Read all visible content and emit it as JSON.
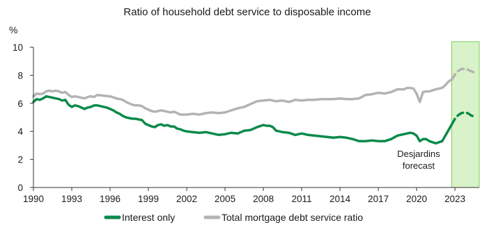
{
  "chart_data": {
    "type": "line",
    "title": "Ratio of household debt service to disposable income",
    "y_unit_label": "%",
    "xlabel": "",
    "ylabel": "",
    "xlim": [
      1990,
      2024.9
    ],
    "ylim": [
      0,
      10
    ],
    "x_ticks": [
      1990,
      1993,
      1996,
      1999,
      2002,
      2005,
      2008,
      2011,
      2014,
      2017,
      2020,
      2023
    ],
    "y_ticks": [
      0,
      2,
      4,
      6,
      8,
      10
    ],
    "grid": false,
    "legend_position": "bottom",
    "forecast_region": {
      "start": 2022.75,
      "end": 2024.9,
      "color": "#d9f2c9",
      "border": "#7ccf5b"
    },
    "annotation": {
      "lines": [
        "Desjardins",
        "forecast"
      ]
    },
    "series": [
      {
        "name": "Interest only",
        "color": "#0a8a4a",
        "style": "solid",
        "x": [
          1990.0,
          1990.25,
          1990.5,
          1990.75,
          1991.0,
          1991.25,
          1991.5,
          1991.75,
          1992.0,
          1992.25,
          1992.5,
          1992.75,
          1993.0,
          1993.25,
          1993.5,
          1993.75,
          1994.0,
          1994.25,
          1994.5,
          1994.75,
          1995.0,
          1995.25,
          1995.5,
          1995.75,
          1996.0,
          1996.25,
          1996.5,
          1996.75,
          1997.0,
          1997.25,
          1997.5,
          1997.75,
          1998.0,
          1998.25,
          1998.5,
          1998.75,
          1999.0,
          1999.25,
          1999.5,
          1999.75,
          2000.0,
          2000.25,
          2000.5,
          2000.75,
          2001.0,
          2001.25,
          2001.5,
          2001.75,
          2002.0,
          2002.5,
          2003.0,
          2003.5,
          2004.0,
          2004.5,
          2005.0,
          2005.5,
          2006.0,
          2006.5,
          2007.0,
          2007.5,
          2008.0,
          2008.25,
          2008.5,
          2008.75,
          2009.0,
          2009.5,
          2010.0,
          2010.5,
          2011.0,
          2011.5,
          2012.0,
          2012.5,
          2013.0,
          2013.5,
          2014.0,
          2014.5,
          2015.0,
          2015.5,
          2016.0,
          2016.5,
          2017.0,
          2017.5,
          2018.0,
          2018.5,
          2019.0,
          2019.5,
          2019.75,
          2020.0,
          2020.25,
          2020.5,
          2020.75,
          2021.0,
          2021.5,
          2022.0,
          2022.25,
          2022.5,
          2022.75
        ],
        "values": [
          6.1,
          6.3,
          6.25,
          6.35,
          6.5,
          6.45,
          6.4,
          6.35,
          6.3,
          6.2,
          6.25,
          5.9,
          5.75,
          5.85,
          5.8,
          5.7,
          5.6,
          5.7,
          5.75,
          5.85,
          5.85,
          5.8,
          5.75,
          5.7,
          5.6,
          5.5,
          5.35,
          5.25,
          5.1,
          5.0,
          4.95,
          4.9,
          4.9,
          4.85,
          4.8,
          4.55,
          4.45,
          4.35,
          4.3,
          4.45,
          4.5,
          4.4,
          4.45,
          4.35,
          4.35,
          4.2,
          4.15,
          4.05,
          4.0,
          3.95,
          3.9,
          3.95,
          3.85,
          3.75,
          3.8,
          3.9,
          3.85,
          4.05,
          4.1,
          4.3,
          4.45,
          4.4,
          4.4,
          4.3,
          4.05,
          3.95,
          3.9,
          3.75,
          3.85,
          3.75,
          3.7,
          3.65,
          3.6,
          3.55,
          3.6,
          3.55,
          3.45,
          3.3,
          3.3,
          3.35,
          3.3,
          3.3,
          3.45,
          3.7,
          3.8,
          3.9,
          3.85,
          3.7,
          3.3,
          3.45,
          3.45,
          3.3,
          3.15,
          3.3,
          3.7,
          4.1,
          4.5
        ]
      },
      {
        "name": "Interest only (forecast)",
        "color": "#0a8a4a",
        "style": "dashed",
        "x": [
          2022.75,
          2023.0,
          2023.25,
          2023.5,
          2023.75,
          2024.0,
          2024.25,
          2024.5
        ],
        "values": [
          4.5,
          4.9,
          5.15,
          5.3,
          5.35,
          5.3,
          5.15,
          5.05
        ]
      },
      {
        "name": "Total mortgage debt service ratio",
        "color": "#b3b3b3",
        "style": "solid",
        "x": [
          1990.0,
          1990.25,
          1990.5,
          1990.75,
          1991.0,
          1991.25,
          1991.5,
          1991.75,
          1992.0,
          1992.25,
          1992.5,
          1992.75,
          1993.0,
          1993.25,
          1993.5,
          1993.75,
          1994.0,
          1994.25,
          1994.5,
          1994.75,
          1995.0,
          1995.5,
          1996.0,
          1996.5,
          1997.0,
          1997.25,
          1997.5,
          1997.75,
          1998.0,
          1998.25,
          1998.5,
          1998.75,
          1999.0,
          1999.25,
          1999.5,
          1999.75,
          2000.0,
          2000.25,
          2000.5,
          2000.75,
          2001.0,
          2001.25,
          2001.5,
          2001.75,
          2002.0,
          2002.5,
          2003.0,
          2003.5,
          2004.0,
          2004.5,
          2005.0,
          2005.5,
          2006.0,
          2006.5,
          2007.0,
          2007.5,
          2008.0,
          2008.5,
          2009.0,
          2009.5,
          2010.0,
          2010.5,
          2011.0,
          2011.5,
          2012.0,
          2012.5,
          2013.0,
          2013.5,
          2014.0,
          2014.5,
          2015.0,
          2015.5,
          2016.0,
          2016.5,
          2017.0,
          2017.5,
          2018.0,
          2018.5,
          2019.0,
          2019.25,
          2019.5,
          2019.75,
          2020.0,
          2020.25,
          2020.5,
          2020.75,
          2021.0,
          2021.5,
          2022.0,
          2022.25,
          2022.5,
          2022.75
        ],
        "values": [
          6.5,
          6.7,
          6.65,
          6.7,
          6.85,
          6.9,
          6.85,
          6.9,
          6.85,
          6.75,
          6.8,
          6.6,
          6.45,
          6.5,
          6.45,
          6.4,
          6.35,
          6.45,
          6.5,
          6.45,
          6.6,
          6.55,
          6.5,
          6.35,
          6.25,
          6.1,
          6.0,
          5.9,
          5.85,
          5.85,
          5.8,
          5.65,
          5.55,
          5.45,
          5.4,
          5.45,
          5.5,
          5.45,
          5.4,
          5.35,
          5.4,
          5.3,
          5.2,
          5.2,
          5.2,
          5.25,
          5.2,
          5.3,
          5.35,
          5.3,
          5.35,
          5.5,
          5.65,
          5.75,
          5.95,
          6.15,
          6.2,
          6.25,
          6.15,
          6.2,
          6.1,
          6.25,
          6.2,
          6.25,
          6.25,
          6.3,
          6.3,
          6.3,
          6.35,
          6.3,
          6.3,
          6.35,
          6.6,
          6.65,
          6.75,
          6.7,
          6.8,
          7.0,
          7.0,
          7.1,
          7.1,
          7.05,
          6.7,
          6.1,
          6.8,
          6.85,
          6.85,
          7.0,
          7.1,
          7.3,
          7.55,
          7.7
        ]
      },
      {
        "name": "Total mortgage debt service ratio (forecast)",
        "color": "#b3b3b3",
        "style": "dashed",
        "x": [
          2022.75,
          2023.0,
          2023.25,
          2023.5,
          2023.75,
          2024.0,
          2024.25,
          2024.5
        ],
        "values": [
          7.7,
          8.05,
          8.3,
          8.45,
          8.45,
          8.4,
          8.3,
          8.2
        ]
      }
    ],
    "legend": [
      {
        "label": "Interest only",
        "color": "#0a8a4a"
      },
      {
        "label": "Total mortgage debt service ratio",
        "color": "#b3b3b3"
      }
    ]
  }
}
